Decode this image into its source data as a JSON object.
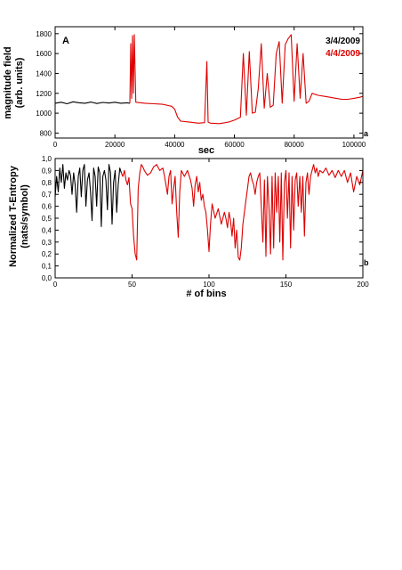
{
  "colors": {
    "day1": "#000000",
    "day2": "#dd0000"
  },
  "chart_data": [
    {
      "type": "line",
      "panel_label": "A",
      "corner_mark": "a",
      "xlabel": "sec",
      "ylabel_line1": "magnitude field",
      "ylabel_line2": "(arb. units)",
      "xlim": [
        0,
        103000
      ],
      "ylim": [
        750,
        1870
      ],
      "xticks": [
        0,
        20000,
        40000,
        60000,
        80000,
        100000
      ],
      "yticks": [
        800,
        1000,
        1200,
        1400,
        1600,
        1800
      ],
      "grid": false,
      "legend_position": "top-right",
      "series": [
        {
          "name": "3/4/2009",
          "color": "#000000",
          "x": [
            0,
            2000,
            4000,
            6000,
            8000,
            10000,
            12000,
            14000,
            16000,
            18000,
            20000,
            22000,
            24000,
            25000
          ],
          "y": [
            1100,
            1110,
            1095,
            1115,
            1105,
            1100,
            1112,
            1098,
            1108,
            1102,
            1110,
            1100,
            1105,
            1100
          ]
        },
        {
          "name": "4/4/2009",
          "color": "#dd0000",
          "x": [
            25000,
            25300,
            25600,
            25900,
            26200,
            26500,
            27000,
            30000,
            33000,
            36000,
            39000,
            40000,
            41000,
            42000,
            45000,
            48000,
            50000,
            50800,
            51200,
            52000,
            55000,
            58000,
            60000,
            62000,
            63000,
            64000,
            65000,
            66000,
            67000,
            68000,
            69000,
            70000,
            71000,
            72000,
            73000,
            74000,
            75000,
            76000,
            77000,
            78000,
            79000,
            80000,
            81000,
            82000,
            83000,
            84000,
            85000,
            86000,
            88000,
            90000,
            92000,
            94000,
            96000,
            98000,
            100000,
            102000,
            103000
          ],
          "y": [
            1100,
            1700,
            1150,
            1780,
            1200,
            1790,
            1110,
            1100,
            1095,
            1090,
            1070,
            1040,
            960,
            920,
            910,
            900,
            905,
            1520,
            910,
            900,
            895,
            910,
            930,
            960,
            1600,
            980,
            1620,
            1000,
            1010,
            1250,
            1700,
            1050,
            1400,
            1060,
            1080,
            1600,
            1720,
            1100,
            1690,
            1750,
            1790,
            1120,
            1700,
            1150,
            1600,
            1100,
            1120,
            1200,
            1180,
            1170,
            1160,
            1150,
            1140,
            1140,
            1150,
            1160,
            1170
          ]
        }
      ]
    },
    {
      "type": "line",
      "corner_mark": "b",
      "xlabel": "# of bins",
      "ylabel_line1": "Normalized T-Entropy",
      "ylabel_line2": "(nats/symbol)",
      "xlim": [
        0,
        200
      ],
      "ylim": [
        0,
        1.0
      ],
      "xticks": [
        0,
        50,
        100,
        150,
        200
      ],
      "yticks": [
        0.0,
        0.1,
        0.2,
        0.3,
        0.4,
        0.5,
        0.6,
        0.7,
        0.8,
        0.9,
        1.0
      ],
      "ytick_labels": [
        "0,0",
        "0,1",
        "0,2",
        "0,3",
        "0,4",
        "0,5",
        "0,6",
        "0,7",
        "0,8",
        "0,9",
        "1,0"
      ],
      "grid": false,
      "series": [
        {
          "name": "3/4/2009",
          "color": "#000000",
          "x": [
            0,
            1,
            2,
            3,
            4,
            5,
            6,
            7,
            8,
            9,
            10,
            11,
            12,
            13,
            14,
            15,
            16,
            17,
            18,
            19,
            20,
            21,
            22,
            23,
            24,
            25,
            26,
            27,
            28,
            29,
            30,
            31,
            32,
            33,
            34,
            35,
            36,
            37,
            38,
            39,
            40,
            41,
            42,
            43
          ],
          "y": [
            0.68,
            0.85,
            0.72,
            0.92,
            0.8,
            0.95,
            0.75,
            0.88,
            0.82,
            0.9,
            0.86,
            0.7,
            0.88,
            0.78,
            0.55,
            0.85,
            0.92,
            0.68,
            0.9,
            0.95,
            0.6,
            0.82,
            0.88,
            0.72,
            0.48,
            0.92,
            0.85,
            0.6,
            0.93,
            0.88,
            0.43,
            0.85,
            0.9,
            0.82,
            0.57,
            0.95,
            0.88,
            0.45,
            0.8,
            0.9,
            0.55,
            0.78,
            0.92,
            0.88
          ]
        },
        {
          "name": "4/4/2009",
          "color": "#dd0000",
          "x": [
            43,
            44,
            45,
            46,
            47,
            48,
            49,
            50,
            51,
            52,
            53,
            54,
            55,
            56,
            57,
            58,
            60,
            62,
            64,
            66,
            68,
            70,
            71,
            72,
            73,
            74,
            75,
            76,
            77,
            78,
            79,
            80,
            81,
            82,
            84,
            86,
            88,
            89,
            90,
            91,
            92,
            93,
            94,
            95,
            96,
            97,
            98,
            99,
            100,
            101,
            102,
            104,
            106,
            108,
            110,
            111,
            112,
            113,
            114,
            115,
            116,
            117,
            118,
            119,
            120,
            121,
            122,
            123,
            124,
            125,
            126,
            127,
            128,
            129,
            130,
            131,
            132,
            133,
            134,
            135,
            136,
            137,
            138,
            139,
            140,
            141,
            142,
            143,
            144,
            145,
            146,
            147,
            148,
            149,
            150,
            151,
            152,
            153,
            154,
            155,
            156,
            157,
            158,
            159,
            160,
            161,
            162,
            163,
            164,
            165,
            166,
            167,
            168,
            169,
            170,
            171,
            172,
            174,
            176,
            178,
            180,
            182,
            184,
            186,
            188,
            190,
            192,
            194,
            196,
            198,
            200
          ],
          "y": [
            0.88,
            0.85,
            0.9,
            0.82,
            0.78,
            0.84,
            0.62,
            0.58,
            0.35,
            0.2,
            0.15,
            0.75,
            0.88,
            0.95,
            0.93,
            0.9,
            0.86,
            0.88,
            0.93,
            0.95,
            0.9,
            0.92,
            0.86,
            0.78,
            0.7,
            0.85,
            0.9,
            0.62,
            0.75,
            0.85,
            0.55,
            0.34,
            0.72,
            0.9,
            0.85,
            0.9,
            0.82,
            0.75,
            0.6,
            0.78,
            0.85,
            0.72,
            0.8,
            0.65,
            0.7,
            0.6,
            0.55,
            0.4,
            0.22,
            0.45,
            0.62,
            0.5,
            0.58,
            0.45,
            0.55,
            0.5,
            0.42,
            0.55,
            0.48,
            0.35,
            0.5,
            0.25,
            0.4,
            0.17,
            0.15,
            0.25,
            0.45,
            0.55,
            0.65,
            0.75,
            0.85,
            0.88,
            0.82,
            0.78,
            0.7,
            0.8,
            0.85,
            0.88,
            0.6,
            0.3,
            0.82,
            0.18,
            0.85,
            0.58,
            0.2,
            0.85,
            0.25,
            0.88,
            0.55,
            0.85,
            0.3,
            0.88,
            0.15,
            0.8,
            0.9,
            0.5,
            0.88,
            0.25,
            0.85,
            0.4,
            0.82,
            0.88,
            0.6,
            0.85,
            0.55,
            0.85,
            0.35,
            0.8,
            0.88,
            0.7,
            0.85,
            0.9,
            0.95,
            0.88,
            0.92,
            0.85,
            0.9,
            0.88,
            0.92,
            0.86,
            0.9,
            0.84,
            0.9,
            0.85,
            0.9,
            0.8,
            0.88,
            0.72,
            0.85,
            0.78,
            0.9
          ]
        }
      ]
    }
  ]
}
